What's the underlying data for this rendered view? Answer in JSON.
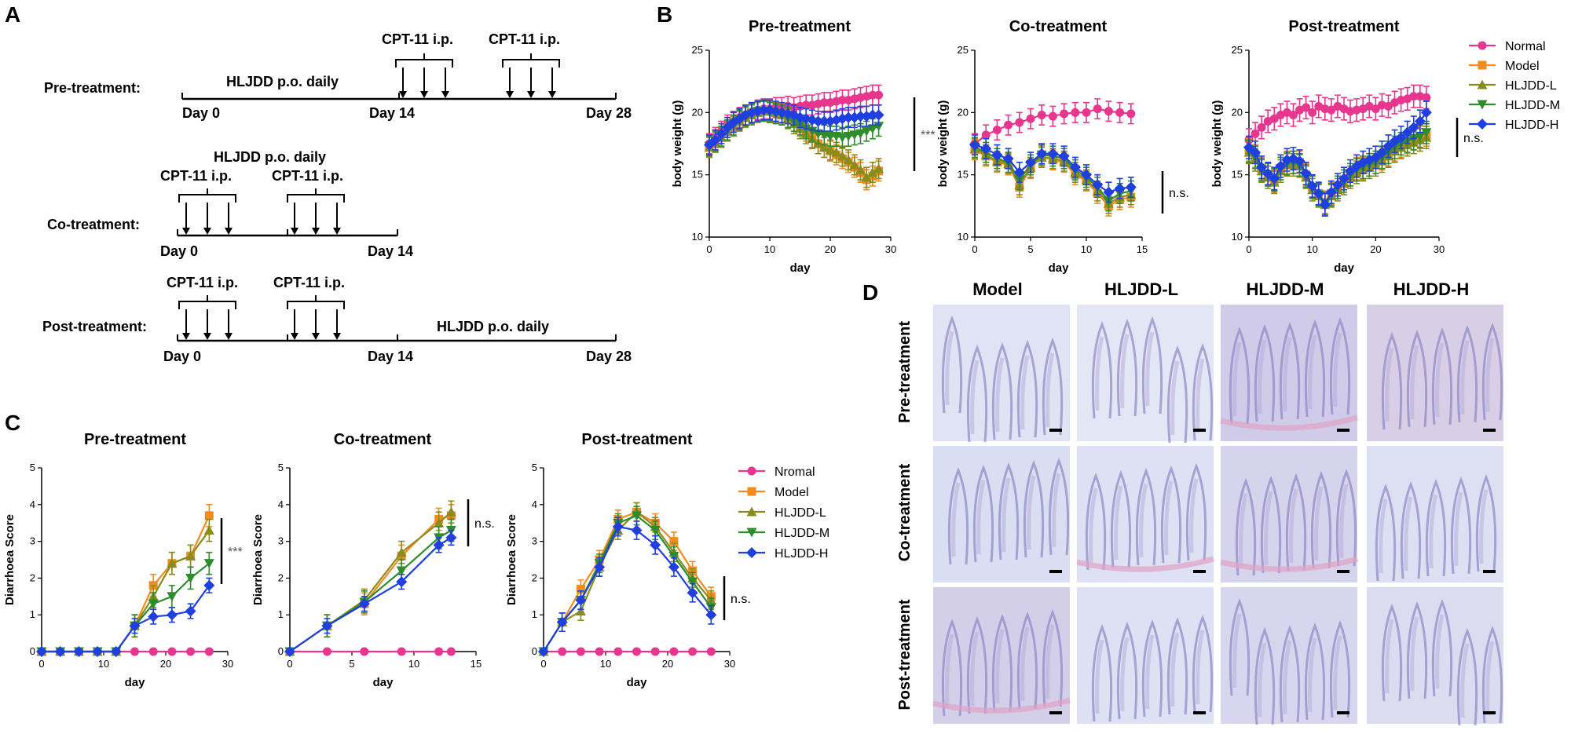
{
  "panel_letters": {
    "a": "A",
    "b": "B",
    "c": "C",
    "d": "D"
  },
  "schedule": {
    "pre": {
      "label": "Pre-treatment:",
      "drug": "HLJDD p.o. daily",
      "cpt1": "CPT-11 i.p.",
      "cpt2": "CPT-11 i.p.",
      "days": [
        "Day 0",
        "Day 14",
        "Day 28"
      ]
    },
    "co": {
      "label": "Co-treatment:",
      "drug": "HLJDD p.o. daily",
      "cpt1": "CPT-11 i.p.",
      "cpt2": "CPT-11 i.p.",
      "days": [
        "Day 0",
        "Day 14"
      ]
    },
    "post": {
      "label": "Post-treatment:",
      "drug": "HLJDD p.o. daily",
      "cpt1": "CPT-11 i.p.",
      "cpt2": "CPT-11 i.p.",
      "days": [
        "Day 0",
        "Day 14",
        "Day 28"
      ]
    }
  },
  "series_colors": {
    "Normal": "#e8368f",
    "Model": "#f28c1e",
    "HLJDD-L": "#8c8c1e",
    "HLJDD-M": "#2e8b2e",
    "HLJDD-H": "#1f3fe0"
  },
  "legend_b": [
    "Normal",
    "Model",
    "HLJDD-L",
    "HLJDD-M",
    "HLJDD-H"
  ],
  "legend_c": [
    "Nromal",
    "Model",
    "HLJDD-L",
    "HLJDD-M",
    "HLJDD-H"
  ],
  "histology": {
    "columns": [
      "Model",
      "HLJDD-L",
      "HLJDD-M",
      "HLJDD-H"
    ],
    "rows": [
      "Pre-treatment",
      "Co-treatment",
      "Post-treatment"
    ]
  },
  "chart_data": [
    {
      "panel": "B",
      "type": "line",
      "title": "Pre-treatment",
      "xlabel": "day",
      "ylabel": "body weight (g)",
      "xlim": [
        0,
        30
      ],
      "ylim": [
        10,
        25
      ],
      "xticks": [
        0,
        10,
        20,
        30
      ],
      "yticks": [
        10,
        15,
        20,
        25
      ],
      "annotation": "***",
      "x": [
        0,
        1,
        2,
        3,
        4,
        5,
        6,
        7,
        8,
        9,
        10,
        11,
        12,
        13,
        14,
        15,
        16,
        17,
        18,
        19,
        20,
        21,
        22,
        23,
        24,
        25,
        26,
        27,
        28
      ],
      "series": [
        {
          "name": "Normal",
          "values": [
            17.5,
            18.0,
            18.5,
            19.0,
            19.3,
            19.6,
            19.8,
            20.0,
            20.2,
            20.3,
            20.3,
            20.4,
            20.4,
            20.5,
            20.4,
            20.5,
            20.6,
            20.6,
            20.7,
            20.8,
            20.8,
            20.9,
            21.0,
            21.0,
            21.1,
            21.2,
            21.3,
            21.4,
            21.4
          ],
          "err": 0.8
        },
        {
          "name": "Model",
          "values": [
            17.3,
            17.8,
            18.3,
            18.8,
            19.2,
            19.5,
            19.8,
            20.0,
            20.1,
            20.2,
            20.1,
            20.0,
            19.9,
            19.6,
            19.3,
            18.9,
            18.5,
            18.0,
            17.5,
            17.2,
            16.9,
            16.6,
            16.3,
            16.0,
            15.6,
            15.2,
            14.6,
            14.9,
            15.3
          ],
          "err": 0.8
        },
        {
          "name": "HLJDD-L",
          "values": [
            17.2,
            17.6,
            18.0,
            18.5,
            18.9,
            19.3,
            19.6,
            19.8,
            20.0,
            20.1,
            20.1,
            20.0,
            19.8,
            19.5,
            19.1,
            18.7,
            18.3,
            17.9,
            17.5,
            17.2,
            17.0,
            16.8,
            16.5,
            16.2,
            15.8,
            15.4,
            14.8,
            15.2,
            15.5
          ],
          "err": 0.8
        },
        {
          "name": "HLJDD-M",
          "values": [
            17.3,
            17.7,
            18.1,
            18.6,
            19.0,
            19.4,
            19.7,
            19.9,
            20.1,
            20.1,
            20.0,
            19.9,
            19.8,
            19.6,
            19.3,
            19.0,
            18.7,
            18.5,
            18.3,
            18.2,
            18.1,
            18.1,
            18.0,
            18.1,
            18.2,
            18.3,
            18.5,
            18.7,
            18.9
          ],
          "err": 0.8
        },
        {
          "name": "HLJDD-H",
          "values": [
            17.4,
            17.8,
            18.3,
            18.8,
            19.2,
            19.5,
            19.8,
            20.0,
            20.1,
            20.2,
            20.2,
            20.1,
            20.0,
            19.9,
            19.8,
            19.6,
            19.5,
            19.4,
            19.3,
            19.3,
            19.3,
            19.4,
            19.5,
            19.6,
            19.6,
            19.7,
            19.7,
            19.8,
            19.8
          ],
          "err": 0.8
        }
      ]
    },
    {
      "panel": "B",
      "type": "line",
      "title": "Co-treatment",
      "xlabel": "day",
      "ylabel": "body weight (g)",
      "xlim": [
        0,
        15
      ],
      "ylim": [
        10,
        25
      ],
      "xticks": [
        0,
        5,
        10,
        15
      ],
      "yticks": [
        10,
        15,
        20,
        25
      ],
      "annotation": "n.s.",
      "x": [
        0,
        1,
        2,
        3,
        4,
        5,
        6,
        7,
        8,
        9,
        10,
        11,
        12,
        13,
        14
      ],
      "series": [
        {
          "name": "Normal",
          "values": [
            17.5,
            18.2,
            18.6,
            19.0,
            19.2,
            19.5,
            19.8,
            19.7,
            19.9,
            20.0,
            20.0,
            20.3,
            20.1,
            20.0,
            19.9
          ],
          "err": 0.8
        },
        {
          "name": "Model",
          "values": [
            17.0,
            16.5,
            16.0,
            15.8,
            14.0,
            15.5,
            16.5,
            16.2,
            16.0,
            15.0,
            14.5,
            13.5,
            12.5,
            13.0,
            13.2
          ],
          "err": 0.8
        },
        {
          "name": "HLJDD-L",
          "values": [
            17.1,
            16.6,
            16.1,
            15.9,
            14.2,
            15.6,
            16.4,
            16.3,
            16.1,
            15.2,
            14.6,
            13.7,
            12.7,
            13.2,
            13.4
          ],
          "err": 0.8
        },
        {
          "name": "HLJDD-M",
          "values": [
            17.2,
            16.8,
            16.3,
            16.0,
            14.6,
            15.8,
            16.6,
            16.5,
            16.3,
            15.4,
            14.8,
            14.0,
            12.9,
            13.5,
            13.7
          ],
          "err": 0.8
        },
        {
          "name": "HLJDD-H",
          "values": [
            17.4,
            17.1,
            16.6,
            16.3,
            15.2,
            16.0,
            16.7,
            16.7,
            16.5,
            15.6,
            15.0,
            14.2,
            13.6,
            13.9,
            14.0
          ],
          "err": 0.8
        }
      ]
    },
    {
      "panel": "B",
      "type": "line",
      "title": "Post-treatment",
      "xlabel": "day",
      "ylabel": "body weight (g)",
      "xlim": [
        0,
        30
      ],
      "ylim": [
        10,
        25
      ],
      "xticks": [
        0,
        10,
        20,
        30
      ],
      "yticks": [
        10,
        15,
        20,
        25
      ],
      "annotation": "n.s.",
      "x": [
        0,
        1,
        2,
        3,
        4,
        5,
        6,
        7,
        8,
        9,
        10,
        11,
        12,
        13,
        14,
        15,
        16,
        17,
        18,
        19,
        20,
        21,
        22,
        23,
        24,
        25,
        26,
        27,
        28
      ],
      "series": [
        {
          "name": "Normal",
          "values": [
            17.8,
            18.3,
            18.8,
            19.3,
            19.5,
            19.8,
            20.0,
            19.8,
            20.2,
            20.4,
            20.0,
            20.5,
            20.3,
            20.2,
            20.5,
            20.3,
            20.1,
            20.2,
            20.3,
            20.5,
            20.3,
            20.6,
            20.5,
            20.8,
            21.0,
            21.1,
            21.3,
            21.3,
            21.2
          ],
          "err": 0.9
        },
        {
          "name": "Model",
          "values": [
            17.0,
            16.5,
            15.5,
            15.0,
            14.5,
            15.5,
            16.0,
            16.0,
            16.0,
            15.0,
            14.0,
            13.5,
            12.8,
            13.5,
            14.0,
            14.5,
            15.0,
            15.5,
            15.5,
            15.8,
            16.0,
            16.3,
            16.6,
            17.0,
            17.3,
            17.6,
            17.9,
            18.0,
            18.2
          ],
          "err": 0.9
        },
        {
          "name": "HLJDD-L",
          "values": [
            16.8,
            16.2,
            15.3,
            14.8,
            14.4,
            15.3,
            15.8,
            15.8,
            15.7,
            14.8,
            13.8,
            13.3,
            12.6,
            13.3,
            13.8,
            14.3,
            14.8,
            15.2,
            15.4,
            15.6,
            15.8,
            16.1,
            16.5,
            16.9,
            17.2,
            17.4,
            17.6,
            17.8,
            18.0
          ],
          "err": 0.9
        },
        {
          "name": "HLJDD-M",
          "values": [
            16.9,
            16.4,
            15.4,
            15.0,
            14.6,
            15.5,
            15.9,
            16.0,
            15.8,
            14.9,
            14.0,
            13.4,
            12.7,
            13.4,
            14.0,
            14.5,
            15.0,
            15.4,
            15.6,
            15.8,
            16.0,
            16.4,
            16.8,
            17.2,
            17.5,
            17.7,
            17.9,
            18.1,
            18.4
          ],
          "err": 0.9
        },
        {
          "name": "HLJDD-H",
          "values": [
            17.2,
            16.8,
            15.6,
            15.1,
            14.7,
            15.7,
            16.2,
            16.3,
            16.1,
            15.1,
            14.1,
            13.5,
            12.6,
            13.6,
            14.2,
            14.7,
            15.3,
            15.7,
            16.0,
            16.2,
            16.4,
            16.8,
            17.3,
            17.7,
            18.0,
            18.4,
            18.8,
            19.3,
            20.0
          ],
          "err": 0.9
        }
      ]
    },
    {
      "panel": "C",
      "type": "line",
      "title": "Pre-treatment",
      "xlabel": "day",
      "ylabel": "Diarrhoea Score",
      "xlim": [
        0,
        30
      ],
      "ylim": [
        0,
        5
      ],
      "xticks": [
        0,
        10,
        20,
        30
      ],
      "yticks": [
        0,
        1,
        2,
        3,
        4,
        5
      ],
      "annotation": "***",
      "x": [
        0,
        3,
        6,
        9,
        12,
        15,
        18,
        21,
        24,
        27
      ],
      "series": [
        {
          "name": "Nromal",
          "values": [
            0,
            0,
            0,
            0,
            0,
            0,
            0,
            0,
            0,
            0
          ],
          "err": 0
        },
        {
          "name": "Model",
          "values": [
            0,
            0,
            0,
            0,
            0,
            0.7,
            1.8,
            2.4,
            2.6,
            3.7
          ],
          "err": 0.3
        },
        {
          "name": "HLJDD-L",
          "values": [
            0,
            0,
            0,
            0,
            0,
            0.7,
            1.5,
            2.4,
            2.6,
            3.3
          ],
          "err": 0.3
        },
        {
          "name": "HLJDD-M",
          "values": [
            0,
            0,
            0,
            0,
            0,
            0.7,
            1.3,
            1.5,
            2.0,
            2.4
          ],
          "err": 0.3
        },
        {
          "name": "HLJDD-H",
          "values": [
            0,
            0,
            0,
            0,
            0,
            0.7,
            0.95,
            1.0,
            1.1,
            1.8
          ],
          "err": 0.2
        }
      ]
    },
    {
      "panel": "C",
      "type": "line",
      "title": "Co-treatment",
      "xlabel": "day",
      "ylabel": "Diarrhoea Score",
      "xlim": [
        0,
        15
      ],
      "ylim": [
        0,
        5
      ],
      "xticks": [
        0,
        5,
        10,
        15
      ],
      "yticks": [
        0,
        1,
        2,
        3,
        4,
        5
      ],
      "annotation": "n.s.",
      "x": [
        0,
        3,
        6,
        9,
        12,
        13
      ],
      "series": [
        {
          "name": "Nromal",
          "values": [
            0,
            0,
            0,
            0,
            0,
            0
          ],
          "err": 0
        },
        {
          "name": "Model",
          "values": [
            0,
            0.7,
            1.3,
            2.6,
            3.6,
            3.7
          ],
          "err": 0.3
        },
        {
          "name": "HLJDD-L",
          "values": [
            0,
            0.7,
            1.4,
            2.7,
            3.5,
            3.8
          ],
          "err": 0.3
        },
        {
          "name": "HLJDD-M",
          "values": [
            0,
            0.7,
            1.35,
            2.2,
            3.1,
            3.3
          ],
          "err": 0.3
        },
        {
          "name": "HLJDD-H",
          "values": [
            0,
            0.7,
            1.3,
            1.9,
            2.9,
            3.1
          ],
          "err": 0.2
        }
      ]
    },
    {
      "panel": "C",
      "type": "line",
      "title": "Post-treatment",
      "xlabel": "day",
      "ylabel": "Diarrhoea Score",
      "xlim": [
        0,
        30
      ],
      "ylim": [
        0,
        5
      ],
      "xticks": [
        0,
        10,
        20,
        30
      ],
      "yticks": [
        0,
        1,
        2,
        3,
        4,
        5
      ],
      "annotation": "n.s.",
      "x": [
        0,
        3,
        6,
        9,
        12,
        15,
        18,
        21,
        24,
        27
      ],
      "series": [
        {
          "name": "Nromal",
          "values": [
            0,
            0,
            0,
            0,
            0,
            0,
            0,
            0,
            0,
            0
          ],
          "err": 0
        },
        {
          "name": "Model",
          "values": [
            0,
            0.8,
            1.7,
            2.5,
            3.6,
            3.8,
            3.5,
            3.0,
            2.2,
            1.5
          ],
          "err": 0.25
        },
        {
          "name": "HLJDD-L",
          "values": [
            0,
            0.8,
            1.1,
            2.3,
            3.3,
            3.8,
            3.4,
            2.7,
            2.0,
            1.4
          ],
          "err": 0.25
        },
        {
          "name": "HLJDD-M",
          "values": [
            0,
            0.8,
            1.4,
            2.4,
            3.5,
            3.7,
            3.3,
            2.6,
            1.9,
            1.2
          ],
          "err": 0.25
        },
        {
          "name": "HLJDD-H",
          "values": [
            0,
            0.8,
            1.4,
            2.3,
            3.4,
            3.3,
            2.9,
            2.3,
            1.6,
            1.0
          ],
          "err": 0.25
        }
      ]
    }
  ]
}
